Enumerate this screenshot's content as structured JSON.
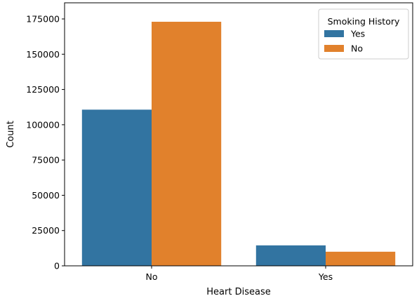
{
  "chart_data": {
    "type": "bar",
    "xlabel": "Heart Disease",
    "ylabel": "Count",
    "categories": [
      "No",
      "Yes"
    ],
    "ylim": [
      0,
      175000
    ],
    "yticks": [
      0,
      25000,
      50000,
      75000,
      100000,
      125000,
      150000,
      175000
    ],
    "legend": {
      "title": "Smoking History",
      "placement": "top-right"
    },
    "series": [
      {
        "name": "Yes",
        "color": "#3274a1",
        "values": [
          110700,
          14500
        ]
      },
      {
        "name": "No",
        "color": "#e1812c",
        "values": [
          173000,
          10000
        ]
      }
    ]
  }
}
